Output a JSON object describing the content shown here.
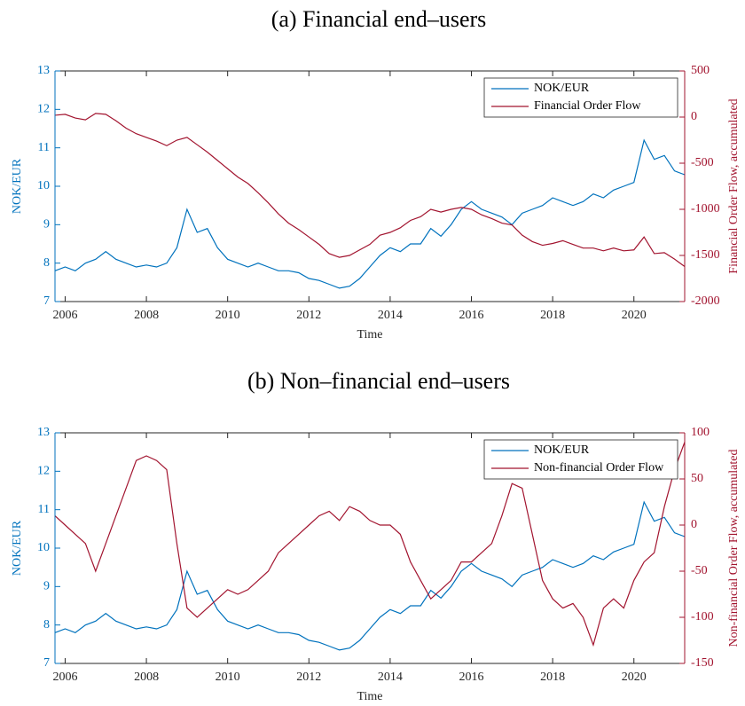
{
  "chart_data": [
    {
      "type": "line",
      "title": "(a) Financial end–users",
      "xlabel": "Time",
      "ylabel": "NOK/EUR",
      "y2label": "Financial Order Flow, accumulated",
      "x": [
        2005.75,
        2006,
        2006.25,
        2006.5,
        2006.75,
        2007,
        2007.25,
        2007.5,
        2007.75,
        2008,
        2008.25,
        2008.5,
        2008.75,
        2009,
        2009.25,
        2009.5,
        2009.75,
        2010,
        2010.25,
        2010.5,
        2010.75,
        2011,
        2011.25,
        2011.5,
        2011.75,
        2012,
        2012.25,
        2012.5,
        2012.75,
        2013,
        2013.25,
        2013.5,
        2013.75,
        2014,
        2014.25,
        2014.5,
        2014.75,
        2015,
        2015.25,
        2015.5,
        2015.75,
        2016,
        2016.25,
        2016.5,
        2016.75,
        2017,
        2017.25,
        2017.5,
        2017.75,
        2018,
        2018.25,
        2018.5,
        2018.75,
        2019,
        2019.25,
        2019.5,
        2019.75,
        2020,
        2020.25,
        2020.5,
        2020.75,
        2021,
        2021.25
      ],
      "series": [
        {
          "name": "NOK/EUR",
          "color": "#0072bd",
          "axis": "y",
          "values": [
            7.8,
            7.9,
            7.8,
            8.0,
            8.1,
            8.3,
            8.1,
            8.0,
            7.9,
            7.95,
            7.9,
            8.0,
            8.4,
            9.4,
            8.8,
            8.9,
            8.4,
            8.1,
            8.0,
            7.9,
            8.0,
            7.9,
            7.8,
            7.8,
            7.75,
            7.6,
            7.55,
            7.45,
            7.35,
            7.4,
            7.6,
            7.9,
            8.2,
            8.4,
            8.3,
            8.5,
            8.5,
            8.9,
            8.7,
            9.0,
            9.4,
            9.6,
            9.4,
            9.3,
            9.2,
            9.0,
            9.3,
            9.4,
            9.5,
            9.7,
            9.6,
            9.5,
            9.6,
            9.8,
            9.7,
            9.9,
            10.0,
            10.1,
            11.2,
            10.7,
            10.8,
            10.4,
            10.3
          ]
        },
        {
          "name": "Financial Order Flow",
          "color": "#a2142f",
          "axis": "y2",
          "values": [
            20,
            30,
            -10,
            -30,
            40,
            30,
            -40,
            -120,
            -180,
            -220,
            -260,
            -310,
            -250,
            -220,
            -300,
            -380,
            -470,
            -560,
            -650,
            -720,
            -820,
            -930,
            -1050,
            -1150,
            -1220,
            -1300,
            -1380,
            -1480,
            -1520,
            -1500,
            -1440,
            -1380,
            -1280,
            -1250,
            -1200,
            -1120,
            -1080,
            -1000,
            -1030,
            -1000,
            -980,
            -1000,
            -1060,
            -1100,
            -1150,
            -1170,
            -1280,
            -1350,
            -1390,
            -1370,
            -1340,
            -1380,
            -1420,
            -1420,
            -1450,
            -1420,
            -1450,
            -1440,
            -1300,
            -1480,
            -1470,
            -1540,
            -1620
          ]
        }
      ],
      "xlim": [
        2005.75,
        2021.25
      ],
      "xticks": [
        2006,
        2008,
        2010,
        2012,
        2014,
        2016,
        2018,
        2020
      ],
      "ylim": [
        7,
        13
      ],
      "yticks": [
        7,
        8,
        9,
        10,
        11,
        12,
        13
      ],
      "y2lim": [
        -2000,
        500
      ],
      "y2ticks": [
        -2000,
        -1500,
        -1000,
        -500,
        0,
        500
      ],
      "legend": "upper right"
    },
    {
      "type": "line",
      "title": "(b) Non–financial end–users",
      "xlabel": "Time",
      "ylabel": "NOK/EUR",
      "y2label": "Non-financial Order Flow, accumulated",
      "x": [
        2005.75,
        2006,
        2006.25,
        2006.5,
        2006.75,
        2007,
        2007.25,
        2007.5,
        2007.75,
        2008,
        2008.25,
        2008.5,
        2008.75,
        2009,
        2009.25,
        2009.5,
        2009.75,
        2010,
        2010.25,
        2010.5,
        2010.75,
        2011,
        2011.25,
        2011.5,
        2011.75,
        2012,
        2012.25,
        2012.5,
        2012.75,
        2013,
        2013.25,
        2013.5,
        2013.75,
        2014,
        2014.25,
        2014.5,
        2014.75,
        2015,
        2015.25,
        2015.5,
        2015.75,
        2016,
        2016.25,
        2016.5,
        2016.75,
        2017,
        2017.25,
        2017.5,
        2017.75,
        2018,
        2018.25,
        2018.5,
        2018.75,
        2019,
        2019.25,
        2019.5,
        2019.75,
        2020,
        2020.25,
        2020.5,
        2020.75,
        2021,
        2021.25
      ],
      "series": [
        {
          "name": "NOK/EUR",
          "color": "#0072bd",
          "axis": "y",
          "values": [
            7.8,
            7.9,
            7.8,
            8.0,
            8.1,
            8.3,
            8.1,
            8.0,
            7.9,
            7.95,
            7.9,
            8.0,
            8.4,
            9.4,
            8.8,
            8.9,
            8.4,
            8.1,
            8.0,
            7.9,
            8.0,
            7.9,
            7.8,
            7.8,
            7.75,
            7.6,
            7.55,
            7.45,
            7.35,
            7.4,
            7.6,
            7.9,
            8.2,
            8.4,
            8.3,
            8.5,
            8.5,
            8.9,
            8.7,
            9.0,
            9.4,
            9.6,
            9.4,
            9.3,
            9.2,
            9.0,
            9.3,
            9.4,
            9.5,
            9.7,
            9.6,
            9.5,
            9.6,
            9.8,
            9.7,
            9.9,
            10.0,
            10.1,
            11.2,
            10.7,
            10.8,
            10.4,
            10.3
          ]
        },
        {
          "name": "Non-financial Order Flow",
          "color": "#a2142f",
          "axis": "y2",
          "values": [
            10,
            0,
            -10,
            -20,
            -50,
            -20,
            10,
            40,
            70,
            75,
            70,
            60,
            -20,
            -90,
            -100,
            -90,
            -80,
            -70,
            -75,
            -70,
            -60,
            -50,
            -30,
            -20,
            -10,
            0,
            10,
            15,
            5,
            20,
            15,
            5,
            0,
            0,
            -10,
            -40,
            -60,
            -80,
            -70,
            -60,
            -40,
            -40,
            -30,
            -20,
            10,
            45,
            40,
            -10,
            -60,
            -80,
            -90,
            -85,
            -100,
            -130,
            -90,
            -80,
            -90,
            -60,
            -40,
            -30,
            20,
            60,
            90
          ]
        }
      ],
      "xlim": [
        2005.75,
        2021.25
      ],
      "xticks": [
        2006,
        2008,
        2010,
        2012,
        2014,
        2016,
        2018,
        2020
      ],
      "ylim": [
        7,
        13
      ],
      "yticks": [
        7,
        8,
        9,
        10,
        11,
        12,
        13
      ],
      "y2lim": [
        -150,
        100
      ],
      "y2ticks": [
        -150,
        -100,
        -50,
        0,
        50,
        100
      ],
      "legend": "upper right"
    }
  ]
}
